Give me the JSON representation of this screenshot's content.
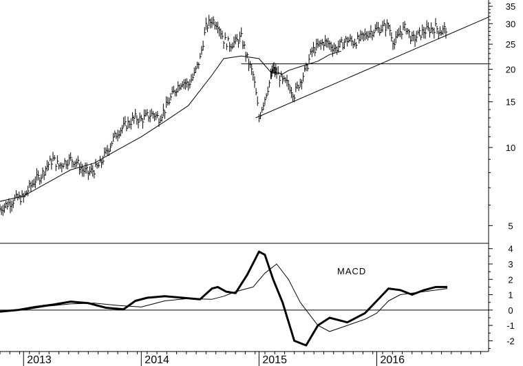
{
  "chart_data": [
    {
      "type": "line",
      "scale": "log",
      "ylim": [
        4.3,
        37
      ],
      "xlim": [
        2012.8,
        2016.95
      ],
      "ytick_labels": [
        "5",
        "10",
        "15",
        "20",
        "25",
        "30",
        "35"
      ],
      "ytick_values": [
        5,
        10,
        15,
        20,
        25,
        30,
        35
      ],
      "series": [
        {
          "style": "price-bars",
          "x": [
            2012.8,
            2012.85,
            2012.9,
            2012.95,
            2013.0,
            2013.05,
            2013.1,
            2013.15,
            2013.2,
            2013.25,
            2013.3,
            2013.35,
            2013.4,
            2013.45,
            2013.5,
            2013.55,
            2013.6,
            2013.65,
            2013.7,
            2013.75,
            2013.8,
            2013.85,
            2013.9,
            2013.95,
            2014.0,
            2014.05,
            2014.1,
            2014.15,
            2014.2,
            2014.25,
            2014.3,
            2014.35,
            2014.4,
            2014.45,
            2014.5,
            2014.55,
            2014.6,
            2014.65,
            2014.7,
            2014.75,
            2014.8,
            2014.85,
            2014.9,
            2014.95,
            2015.0,
            2015.05,
            2015.1,
            2015.12,
            2015.15,
            2015.2,
            2015.25,
            2015.3,
            2015.35,
            2015.4,
            2015.45,
            2015.5,
            2015.55,
            2015.6,
            2015.65,
            2015.7,
            2015.75,
            2015.8,
            2015.85,
            2015.9,
            2015.95,
            2016.0,
            2016.05,
            2016.1,
            2016.15,
            2016.2,
            2016.25,
            2016.3,
            2016.35,
            2016.4,
            2016.45,
            2016.5,
            2016.55,
            2016.6
          ],
          "values": [
            5.8,
            6.0,
            6.2,
            6.4,
            6.4,
            7.0,
            7.5,
            7.8,
            8.5,
            9.0,
            8.5,
            8.8,
            9.0,
            8.8,
            8.2,
            8.0,
            8.2,
            8.6,
            9.5,
            10.5,
            11.5,
            12.0,
            12.5,
            13.0,
            12.8,
            13.2,
            13.5,
            13.0,
            14.0,
            15.5,
            17.0,
            18.0,
            17.5,
            19.0,
            22.0,
            29.0,
            31.0,
            30.0,
            26.0,
            25.0,
            25.5,
            26.5,
            22.0,
            19.0,
            13.0,
            15.5,
            18.5,
            20.0,
            19.5,
            18.0,
            17.5,
            16.0,
            18.0,
            20.0,
            23.5,
            24.5,
            25.5,
            25.0,
            24.0,
            25.0,
            26.0,
            25.5,
            26.0,
            27.0,
            28.0,
            28.5,
            29.0,
            29.5,
            25.0,
            28.0,
            29.0,
            26.0,
            27.0,
            28.0,
            28.5,
            29.0,
            28.0,
            29.0
          ]
        },
        {
          "style": "moving-average",
          "x": [
            2012.8,
            2013.0,
            2013.2,
            2013.4,
            2013.6,
            2013.8,
            2014.0,
            2014.2,
            2014.4,
            2014.6,
            2014.7,
            2014.85,
            2015.0,
            2015.1,
            2015.2,
            2015.25,
            2015.35,
            2015.5,
            2015.6,
            2015.7
          ],
          "values": [
            6.2,
            6.5,
            7.3,
            8.2,
            8.7,
            9.8,
            11.0,
            12.6,
            14.5,
            19.0,
            22.0,
            22.5,
            22.0,
            19.5,
            19.2,
            19.8,
            20.5,
            21.5,
            22.8,
            23.5
          ]
        },
        {
          "style": "trendline",
          "x": [
            2014.97,
            2016.95
          ],
          "values": [
            13.0,
            31.8
          ]
        },
        {
          "style": "trendline",
          "x": [
            2014.85,
            2016.95
          ],
          "values": [
            21.0,
            21.0
          ]
        }
      ]
    },
    {
      "type": "line",
      "title": "MACD",
      "ylim": [
        -2.7,
        4.3
      ],
      "ytick_labels": [
        "-2",
        "-1",
        "0",
        "1",
        "2",
        "3",
        "4"
      ],
      "ytick_values": [
        -2,
        -1,
        0,
        1,
        2,
        3,
        4
      ],
      "series": [
        {
          "style": "thick",
          "x": [
            2012.8,
            2012.95,
            2013.1,
            2013.25,
            2013.4,
            2013.55,
            2013.7,
            2013.85,
            2013.95,
            2014.05,
            2014.2,
            2014.35,
            2014.5,
            2014.6,
            2014.65,
            2014.72,
            2014.8,
            2014.9,
            2015.0,
            2015.05,
            2015.12,
            2015.2,
            2015.3,
            2015.4,
            2015.5,
            2015.6,
            2015.75,
            2015.9,
            2016.0,
            2016.1,
            2016.2,
            2016.3,
            2016.4,
            2016.5,
            2016.6
          ],
          "values": [
            -0.1,
            0.0,
            0.2,
            0.35,
            0.55,
            0.45,
            0.15,
            0.05,
            0.6,
            0.8,
            0.9,
            0.8,
            0.7,
            1.4,
            1.5,
            1.2,
            1.1,
            2.3,
            3.8,
            3.6,
            2.0,
            0.5,
            -2.0,
            -2.3,
            -1.0,
            -0.5,
            -0.8,
            -0.2,
            0.6,
            1.4,
            1.3,
            1.0,
            1.3,
            1.5,
            1.5
          ]
        },
        {
          "style": "thin",
          "x": [
            2012.8,
            2013.0,
            2013.2,
            2013.4,
            2013.6,
            2013.8,
            2014.0,
            2014.2,
            2014.4,
            2014.6,
            2014.7,
            2014.8,
            2014.95,
            2015.05,
            2015.15,
            2015.25,
            2015.35,
            2015.5,
            2015.6,
            2015.75,
            2015.9,
            2016.0,
            2016.1,
            2016.2,
            2016.3,
            2016.4,
            2016.5,
            2016.6
          ],
          "values": [
            -0.1,
            0.0,
            0.25,
            0.4,
            0.45,
            0.3,
            0.2,
            0.6,
            0.75,
            0.7,
            0.9,
            1.2,
            1.5,
            2.4,
            3.0,
            2.0,
            0.5,
            -1.0,
            -1.4,
            -1.0,
            -0.6,
            -0.2,
            0.6,
            1.0,
            1.1,
            1.2,
            1.3,
            1.4
          ]
        }
      ]
    }
  ],
  "axis": {
    "x_labels": [
      "2013",
      "2014",
      "2015",
      "2016"
    ],
    "x_label_positions": [
      2013.0,
      2014.0,
      2015.0,
      2016.0
    ]
  }
}
